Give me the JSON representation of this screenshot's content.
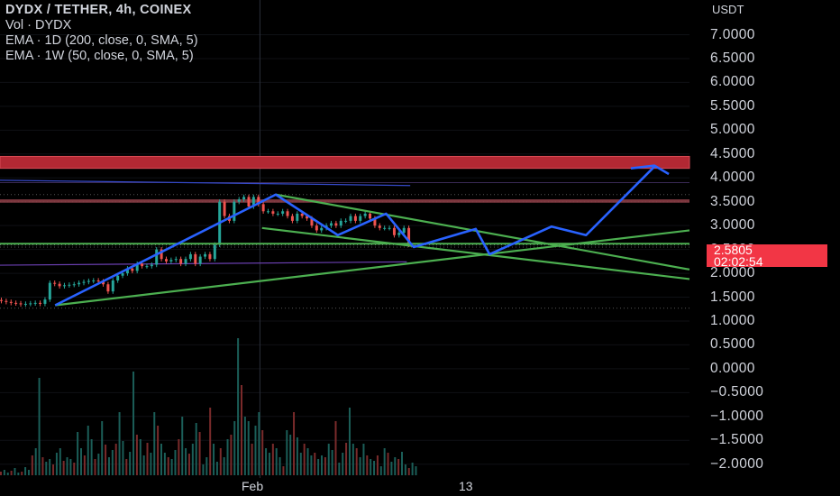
{
  "legend": {
    "title": "DYDX / TETHER, 4h, COINEX",
    "vol": "Vol · DYDX",
    "ema1": "EMA · 1D (200, close, 0, SMA, 5)",
    "ema2": "EMA · 1W (50, close, 0, SMA, 5)"
  },
  "price_axis": {
    "unit": "USDT",
    "current_price": "2.5805",
    "countdown": "02:02:54"
  },
  "colors": {
    "background": "#000000",
    "up_candle": "#26a69a",
    "down_candle": "#ef5350",
    "projection": "#2962ff",
    "trendline": "#4caf50",
    "resistance_zone": "#b22833",
    "price_tag": "#f23645"
  },
  "chart_data": {
    "type": "candlestick",
    "symbol": "DYDX / TETHER",
    "timeframe": "4h",
    "exchange": "COINEX",
    "y_ticks": [
      "7.0000",
      "6.5000",
      "6.0000",
      "5.5000",
      "5.0000",
      "4.5000",
      "4.0000",
      "3.5000",
      "3.0000",
      "2.5000",
      "2.0000",
      "1.5000",
      "1.0000",
      "0.5000",
      "0.0000",
      "−0.5000",
      "−1.0000",
      "−1.5000",
      "−2.0000"
    ],
    "y_tick_values": [
      7.0,
      6.5,
      6.0,
      5.5,
      5.0,
      4.5,
      4.0,
      3.5,
      3.0,
      2.5,
      2.0,
      1.5,
      1.0,
      0.5,
      0.0,
      -0.5,
      -1.0,
      -1.5,
      -2.0
    ],
    "x_labels": [
      {
        "text": "Feb",
        "t": 0.366
      },
      {
        "text": "13",
        "t": 0.681
      }
    ],
    "ylim": [
      -2.1,
      7.35
    ],
    "price_range": [
      1.3,
      3.65
    ],
    "resistance_zone": [
      4.2,
      4.45
    ],
    "horizontal_levels": [
      2.6,
      3.5,
      3.65,
      2.55,
      1.27
    ],
    "ema_1d_line": [
      [
        0.0,
        3.95
      ],
      [
        0.595,
        3.84
      ]
    ],
    "ema_1w_line": [
      [
        0.0,
        2.17
      ],
      [
        0.59,
        2.24
      ]
    ],
    "candles_close": [
      1.42,
      1.4,
      1.38,
      1.37,
      1.35,
      1.36,
      1.37,
      1.38,
      1.36,
      1.45,
      1.8,
      1.78,
      1.73,
      1.75,
      1.76,
      1.77,
      1.8,
      1.82,
      1.84,
      1.85,
      1.83,
      1.77,
      1.62,
      1.85,
      1.95,
      2.0,
      2.1,
      2.05,
      2.2,
      2.15,
      2.15,
      2.18,
      2.5,
      2.3,
      2.25,
      2.28,
      2.3,
      2.2,
      2.3,
      2.4,
      2.2,
      2.35,
      2.4,
      2.3,
      2.6,
      3.5,
      3.2,
      3.1,
      3.5,
      3.55,
      3.6,
      3.4,
      3.6,
      3.45,
      3.3,
      3.3,
      3.25,
      3.25,
      3.3,
      3.2,
      3.1,
      3.25,
      3.2,
      3.15,
      3.0,
      2.9,
      2.95,
      3.0,
      3.05,
      3.0,
      3.1,
      3.1,
      3.2,
      3.1,
      3.2,
      3.25,
      3.15,
      3.0,
      2.95,
      2.95,
      2.95,
      2.8,
      2.85,
      2.95,
      2.6
    ],
    "volume_heights": [
      4,
      6,
      3,
      5,
      8,
      3,
      4,
      9,
      6,
      22,
      30,
      108,
      20,
      15,
      18,
      12,
      25,
      30,
      16,
      20,
      18,
      14,
      48,
      30,
      22,
      55,
      40,
      18,
      24,
      60,
      34,
      20,
      28,
      35,
      70,
      38,
      18,
      26,
      115,
      45,
      40,
      22,
      36,
      25,
      70,
      55,
      35,
      25,
      20,
      18,
      28,
      40,
      65,
      30,
      24,
      35,
      58,
      48,
      12,
      20,
      75,
      35,
      15,
      30,
      20,
      40,
      45,
      60,
      152,
      100,
      65,
      60,
      35,
      55,
      70,
      50,
      30,
      25,
      35,
      30,
      20,
      10,
      50,
      45,
      70,
      42,
      25,
      35,
      30,
      22,
      25,
      18,
      22,
      20,
      35,
      28,
      60,
      14,
      25,
      36,
      75,
      35,
      30,
      20,
      35,
      22,
      18,
      16,
      22,
      10,
      30,
      25,
      15,
      20,
      18,
      26,
      12,
      8,
      14,
      10
    ],
    "projection_path": [
      [
        0.08,
        1.33
      ],
      [
        0.4,
        3.65
      ],
      [
        0.49,
        2.8
      ],
      [
        0.56,
        3.25
      ],
      [
        0.6,
        2.55
      ],
      [
        0.69,
        2.93
      ],
      [
        0.71,
        2.4
      ],
      [
        0.8,
        2.98
      ],
      [
        0.85,
        2.8
      ],
      [
        0.95,
        4.25
      ],
      [
        0.97,
        4.08
      ]
    ],
    "projection_hook": [
      [
        0.915,
        4.2
      ],
      [
        0.95,
        4.26
      ]
    ],
    "trendlines": [
      {
        "points": [
          [
            0.08,
            1.33
          ],
          [
            1.0,
            2.9
          ]
        ]
      },
      {
        "points": [
          [
            0.4,
            3.65
          ],
          [
            1.0,
            2.08
          ]
        ]
      },
      {
        "points": [
          [
            0.38,
            2.95
          ],
          [
            1.0,
            1.88
          ]
        ]
      }
    ]
  }
}
